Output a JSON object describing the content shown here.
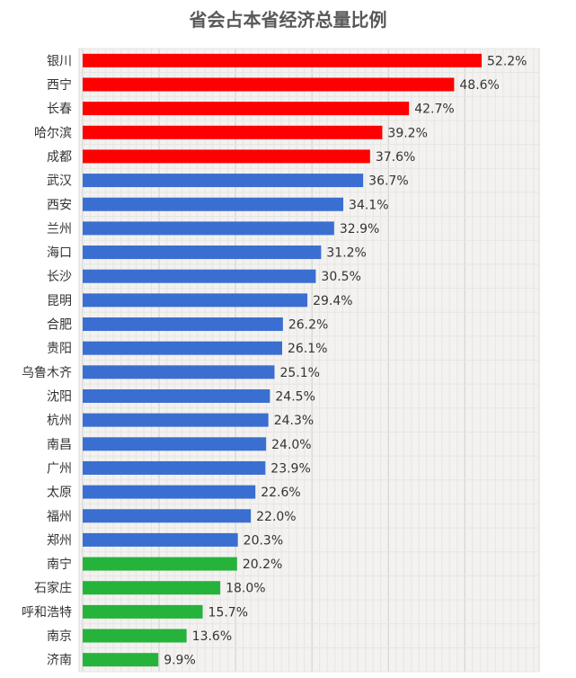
{
  "chart_data": {
    "type": "bar",
    "orientation": "horizontal",
    "title": "省会占本省经济总量比例",
    "categories": [
      "银川",
      "西宁",
      "长春",
      "哈尔滨",
      "成都",
      "武汉",
      "西安",
      "兰州",
      "海口",
      "长沙",
      "昆明",
      "合肥",
      "贵阳",
      "乌鲁木齐",
      "沈阳",
      "杭州",
      "南昌",
      "广州",
      "太原",
      "福州",
      "郑州",
      "南宁",
      "石家庄",
      "呼和浩特",
      "南京",
      "济南"
    ],
    "values": [
      52.2,
      48.6,
      42.7,
      39.2,
      37.6,
      36.7,
      34.1,
      32.9,
      31.2,
      30.5,
      29.4,
      26.2,
      26.1,
      25.1,
      24.5,
      24.3,
      24.0,
      23.9,
      22.6,
      22.0,
      20.3,
      20.2,
      18.0,
      15.7,
      13.6,
      9.9
    ],
    "data_labels": [
      "52.2%",
      "48.6%",
      "42.7%",
      "39.2%",
      "37.6%",
      "36.7%",
      "34.1%",
      "32.9%",
      "31.2%",
      "30.5%",
      "29.4%",
      "26.2%",
      "26.1%",
      "25.1%",
      "24.5%",
      "24.3%",
      "24.0%",
      "23.9%",
      "22.6%",
      "22.0%",
      "20.3%",
      "20.2%",
      "18.0%",
      "15.7%",
      "13.6%",
      "9.9%"
    ],
    "bar_colors": [
      "#ff0000",
      "#ff0000",
      "#ff0000",
      "#ff0000",
      "#ff0000",
      "#3a6fd1",
      "#3a6fd1",
      "#3a6fd1",
      "#3a6fd1",
      "#3a6fd1",
      "#3a6fd1",
      "#3a6fd1",
      "#3a6fd1",
      "#3a6fd1",
      "#3a6fd1",
      "#3a6fd1",
      "#3a6fd1",
      "#3a6fd1",
      "#3a6fd1",
      "#3a6fd1",
      "#3a6fd1",
      "#26b33b",
      "#26b33b",
      "#26b33b",
      "#26b33b",
      "#26b33b"
    ],
    "xlim": [
      0,
      60
    ],
    "grid": true,
    "legend": "none"
  }
}
